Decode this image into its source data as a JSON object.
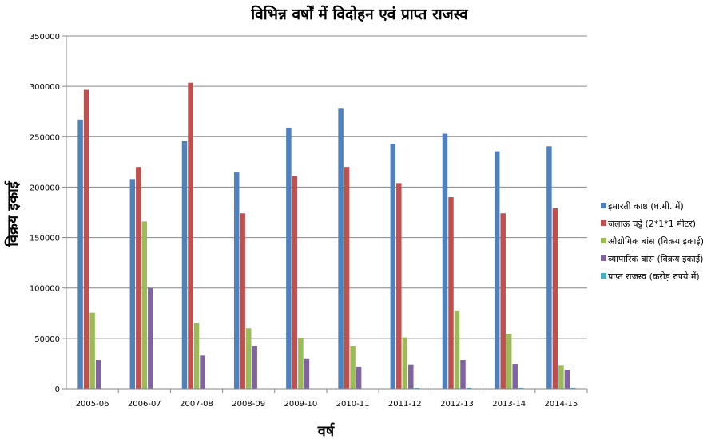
{
  "chart_data": {
    "type": "bar",
    "title": "विभिन्न वर्षों में विदोहन एवं प्राप्त राजस्व",
    "xlabel": "वर्ष",
    "ylabel": "विक्रय इकाई",
    "ylim": [
      0,
      350000
    ],
    "yticks": [
      0,
      50000,
      100000,
      150000,
      200000,
      250000,
      300000,
      350000
    ],
    "grid": true,
    "legend_position": "right",
    "categories": [
      "2005-06",
      "2006-07",
      "2007-08",
      "2008-09",
      "2009-10",
      "2010-11",
      "2011-12",
      "2012-13",
      "2013-14",
      "2014-15"
    ],
    "series": [
      {
        "name": "इमारती काष्ठ (घ.मी. में)",
        "color": "#4f81bd",
        "values": [
          267000,
          208000,
          245500,
          214500,
          259000,
          278500,
          243000,
          253000,
          235500,
          240500
        ]
      },
      {
        "name": "जलाऊ चट्टे (2*1*1 मीटर)",
        "color": "#c0504d",
        "values": [
          296500,
          220000,
          303500,
          174000,
          211000,
          220000,
          204000,
          190000,
          174000,
          179000
        ]
      },
      {
        "name": "औद्योगिक बांस (विक्रय इकाई)",
        "color": "#9bbb59",
        "values": [
          75500,
          166000,
          65000,
          60000,
          50000,
          42000,
          51000,
          77000,
          54500,
          23500
        ]
      },
      {
        "name": "व्यापारिक बांस (विक्रय इकाई)",
        "color": "#8064a2",
        "values": [
          28500,
          100000,
          33000,
          42000,
          29500,
          21500,
          24000,
          28500,
          24500,
          19000
        ]
      },
      {
        "name": "प्राप्त राजस्व (करोड़ रुपये में)",
        "color": "#4bacc6",
        "values": [
          300,
          300,
          300,
          300,
          300,
          300,
          800,
          900,
          900,
          900
        ]
      }
    ]
  }
}
